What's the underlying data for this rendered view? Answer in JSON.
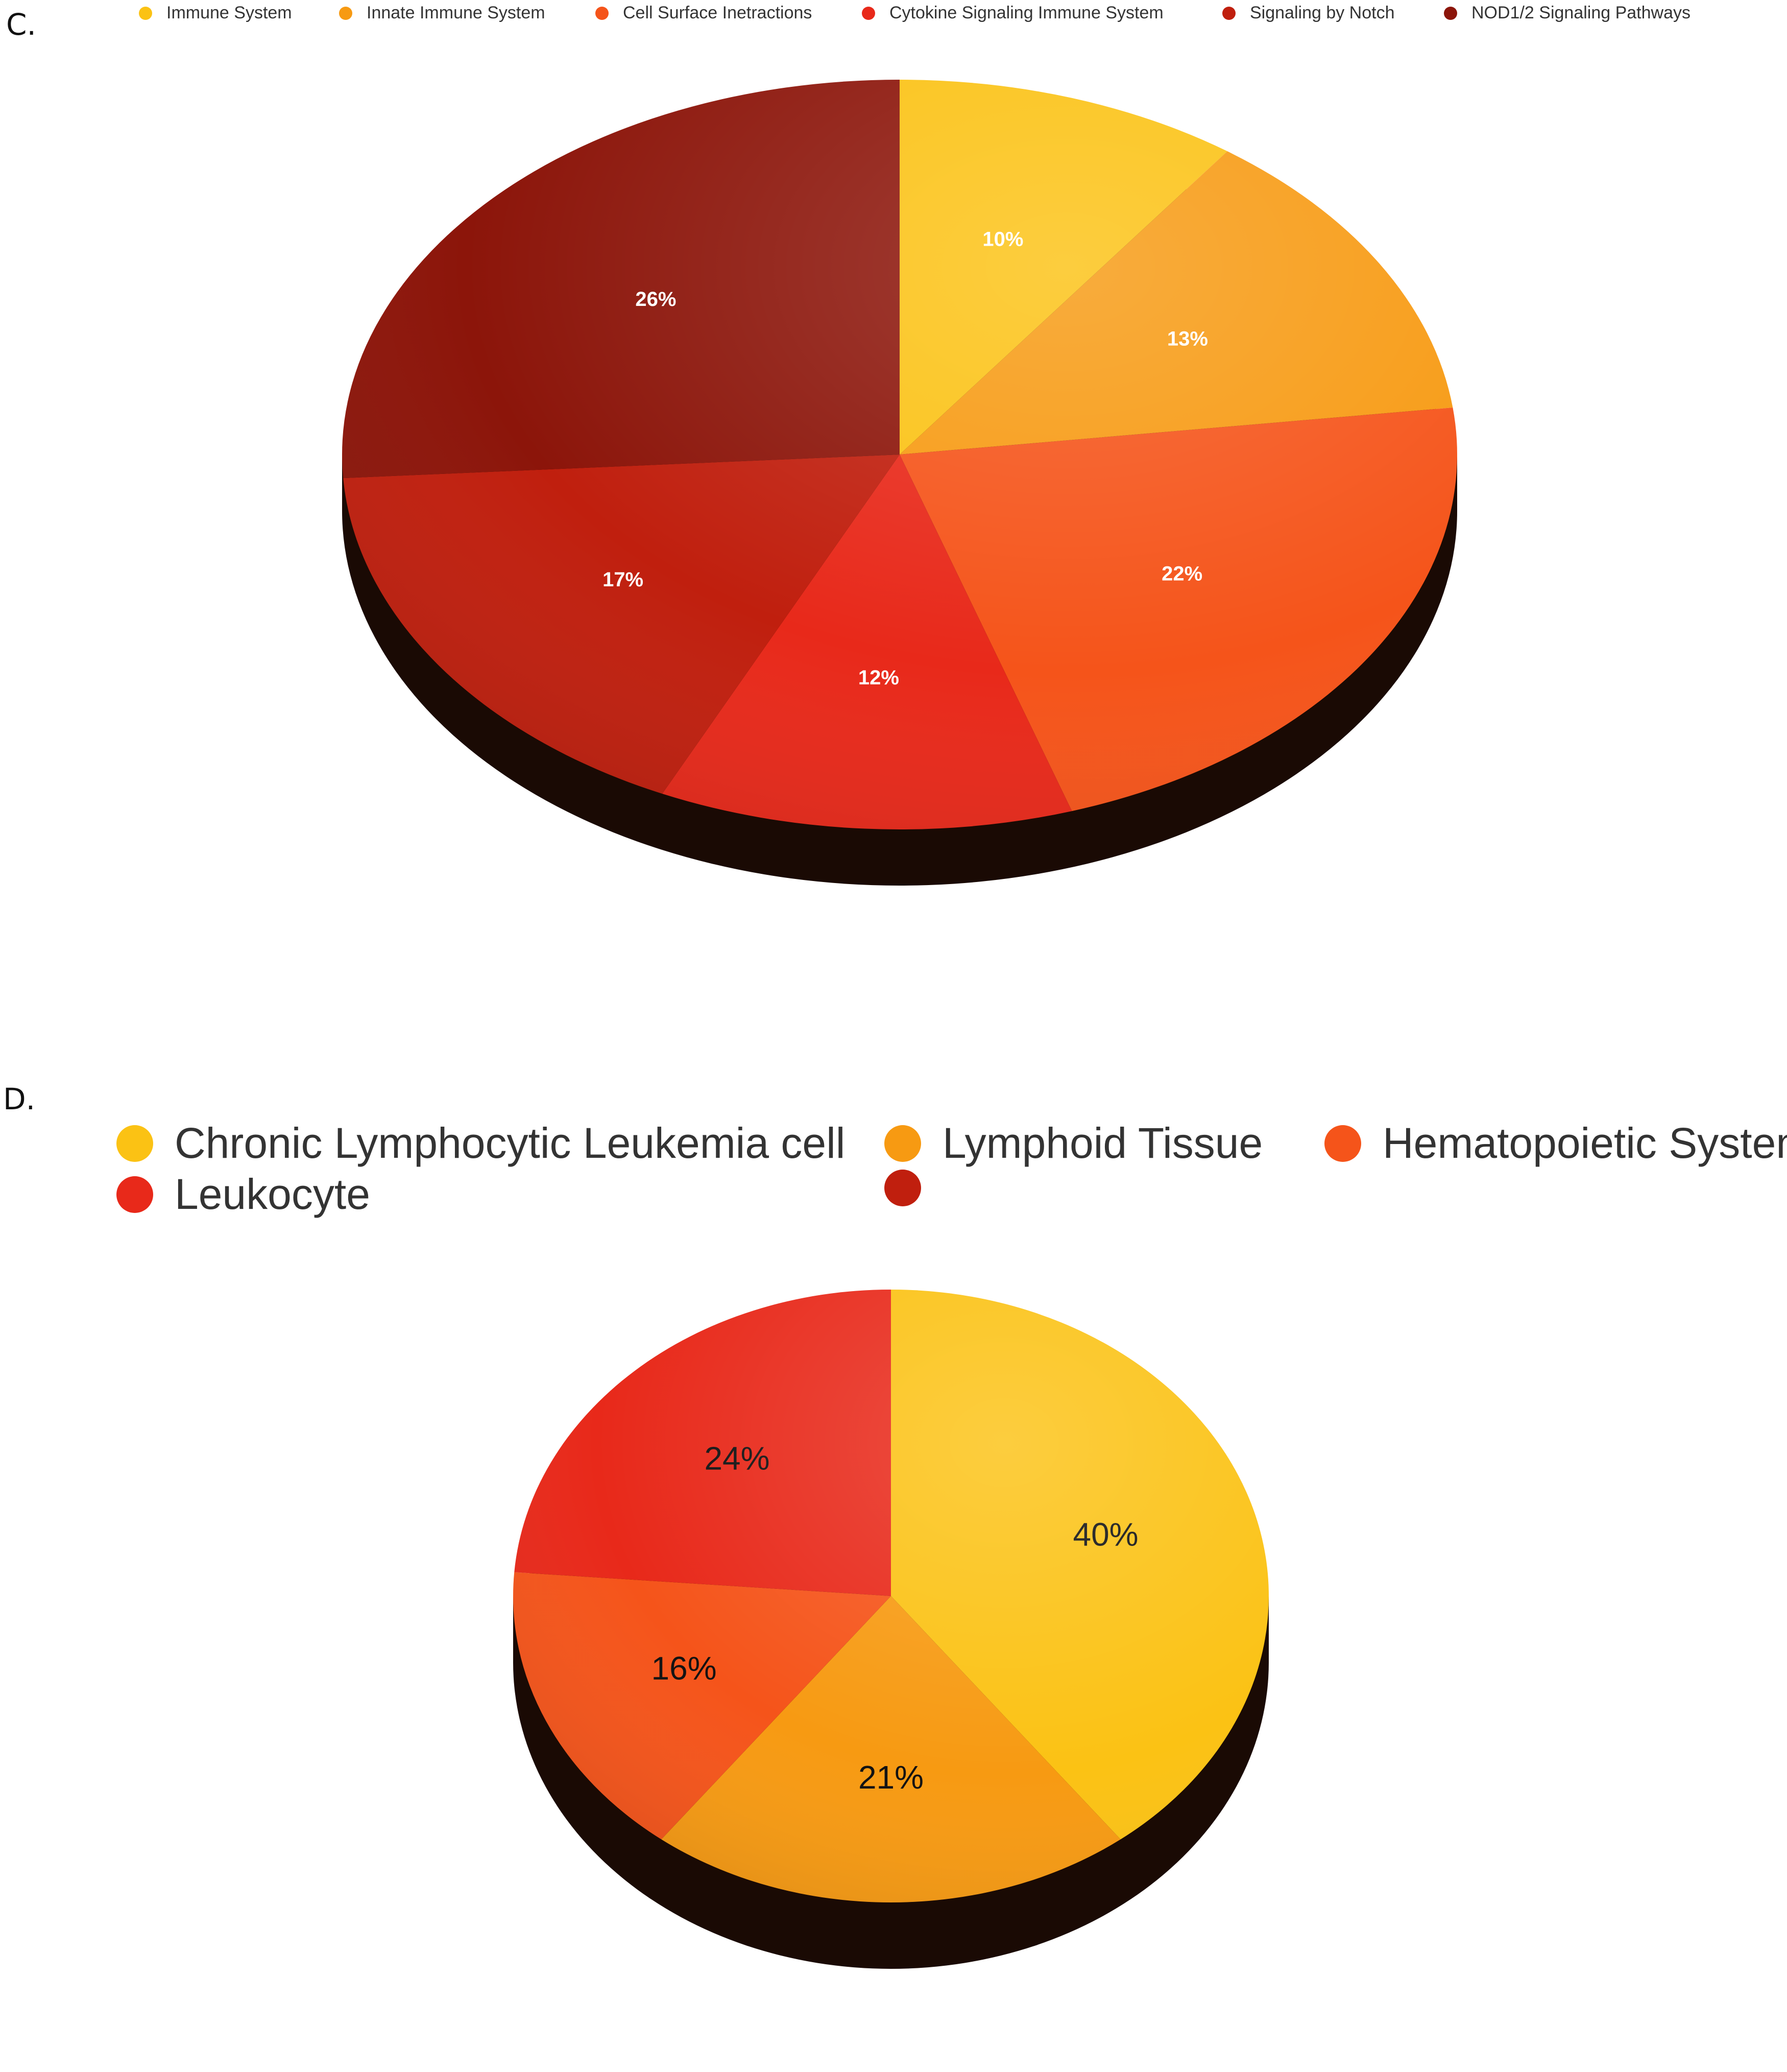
{
  "figure": {
    "panel_c_label": "C.",
    "panel_d_label": "D."
  },
  "chart_data": [
    {
      "type": "pie",
      "panel": "C.",
      "legend_placement": "top",
      "style": "3d",
      "categories": [
        "Immune System",
        "Innate Immune System",
        "Cell Surface Inetractions",
        "Cytokine Signaling Immune System",
        "Signaling by Notch",
        "NOD1/2 Signaling Pathways"
      ],
      "values": [
        10,
        13,
        22,
        12,
        17,
        26
      ],
      "labels": [
        "10%",
        "13%",
        "22%",
        "12%",
        "17%",
        "26%"
      ],
      "colors": [
        "#fbc214",
        "#f79a12",
        "#f5541a",
        "#e8291a",
        "#c01f0e",
        "#8c150a"
      ]
    },
    {
      "type": "pie",
      "panel": "D.",
      "legend_placement": "top",
      "style": "3d",
      "categories": [
        "Chronic Lymphocytic Leukemia cell",
        "Lymphoid Tissue",
        "Hematopoietic System",
        "Leukocyte",
        ""
      ],
      "values": [
        40,
        21,
        16,
        24
      ],
      "labels": [
        "40%",
        "21%",
        "16%",
        "24%"
      ],
      "colors": [
        "#fbc214",
        "#f79a12",
        "#f5541a",
        "#e8291a",
        "#c01f0e"
      ]
    }
  ]
}
